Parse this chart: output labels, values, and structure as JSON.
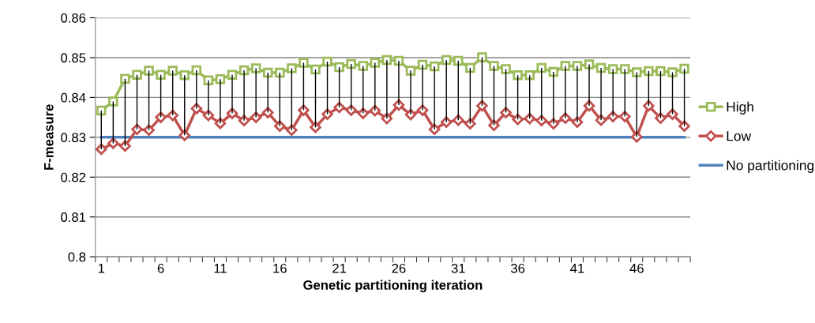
{
  "chart_data": {
    "type": "line",
    "xlabel": "Genetic partitioning iteration",
    "ylabel": "F-measure",
    "categories": [
      "1",
      null,
      null,
      null,
      null,
      "6",
      null,
      null,
      null,
      null,
      "11",
      null,
      null,
      null,
      null,
      "16",
      null,
      null,
      null,
      null,
      "21",
      null,
      null,
      null,
      null,
      "26",
      null,
      null,
      null,
      null,
      "31",
      null,
      null,
      null,
      null,
      "36",
      null,
      null,
      null,
      null,
      "41",
      null,
      null,
      null,
      null,
      "46",
      null,
      null,
      null,
      null
    ],
    "ylim": [
      0.8,
      0.86
    ],
    "yticks": [
      {
        "value": 0.8,
        "label": "0.8"
      },
      0.81,
      0.82,
      0.83,
      0.84,
      0.85,
      0.86
    ],
    "grid": "y",
    "legend": "right",
    "series": [
      {
        "name": "High",
        "color": "#9bbb59",
        "marker": "square",
        "values": [
          0.8367,
          0.839,
          0.8447,
          0.8457,
          0.8467,
          0.8457,
          0.8467,
          0.8456,
          0.8468,
          0.8443,
          0.8446,
          0.8457,
          0.8468,
          0.8473,
          0.8462,
          0.8462,
          0.8473,
          0.8487,
          0.847,
          0.849,
          0.8476,
          0.8484,
          0.8479,
          0.8487,
          0.8494,
          0.8492,
          0.8467,
          0.8482,
          0.8478,
          0.8494,
          0.8492,
          0.8474,
          0.8501,
          0.8479,
          0.8471,
          0.8456,
          0.8456,
          0.8474,
          0.8464,
          0.8479,
          0.8479,
          0.8483,
          0.8474,
          0.8471,
          0.8471,
          0.8463,
          0.8466,
          0.8466,
          0.8463,
          0.8472
        ]
      },
      {
        "name": "Low",
        "color": "#c0504d",
        "marker": "diamond",
        "errors": [
          [
            0.827,
            0.8367
          ],
          [
            0.8285,
            0.839
          ],
          [
            0.8278,
            0.8447
          ],
          [
            0.832,
            0.8457
          ],
          [
            0.8318,
            0.8467
          ],
          [
            0.835,
            0.8457
          ],
          [
            0.8355,
            0.8467
          ],
          [
            0.8305,
            0.8456
          ],
          [
            0.8372,
            0.8468
          ],
          [
            0.8355,
            0.8443
          ],
          [
            0.8335,
            0.8446
          ],
          [
            0.836,
            0.8457
          ],
          [
            0.8342,
            0.8468
          ],
          [
            0.835,
            0.8473
          ],
          [
            0.8362,
            0.8462
          ],
          [
            0.8328,
            0.8462
          ],
          [
            0.8318,
            0.8473
          ],
          [
            0.8368,
            0.8487
          ],
          [
            0.8325,
            0.847
          ],
          [
            0.8358,
            0.849
          ],
          [
            0.8375,
            0.8476
          ],
          [
            0.8368,
            0.8484
          ],
          [
            0.836,
            0.8479
          ],
          [
            0.8367,
            0.8487
          ],
          [
            0.8347,
            0.8494
          ],
          [
            0.8381,
            0.8492
          ],
          [
            0.8357,
            0.8467
          ],
          [
            0.8368,
            0.8482
          ],
          [
            0.832,
            0.8478
          ],
          [
            0.8338,
            0.8494
          ],
          [
            0.8343,
            0.8492
          ],
          [
            0.8334,
            0.8474
          ],
          [
            0.8379,
            0.8501
          ],
          [
            0.833,
            0.8479
          ],
          [
            0.8362,
            0.8471
          ],
          [
            0.8345,
            0.8456
          ],
          [
            0.8347,
            0.8456
          ],
          [
            0.8342,
            0.8474
          ],
          [
            0.8334,
            0.8464
          ],
          [
            0.8348,
            0.8479
          ],
          [
            0.8338,
            0.8479
          ],
          [
            0.8379,
            0.8483
          ],
          [
            0.8343,
            0.8474
          ],
          [
            0.8352,
            0.8471
          ],
          [
            0.8352,
            0.8471
          ],
          [
            0.8301,
            0.8463
          ],
          [
            0.8379,
            0.8466
          ],
          [
            0.8348,
            0.8466
          ],
          [
            0.8358,
            0.8463
          ],
          [
            0.8328,
            0.8472
          ]
        ],
        "values": [
          0.827,
          0.8285,
          0.8278,
          0.832,
          0.8318,
          0.835,
          0.8355,
          0.8305,
          0.8372,
          0.8355,
          0.8335,
          0.836,
          0.8342,
          0.835,
          0.8362,
          0.8328,
          0.8318,
          0.8368,
          0.8325,
          0.8358,
          0.8375,
          0.8368,
          0.836,
          0.8367,
          0.8347,
          0.8381,
          0.8357,
          0.8368,
          0.832,
          0.8338,
          0.8343,
          0.8334,
          0.8379,
          0.833,
          0.8362,
          0.8345,
          0.8347,
          0.8342,
          0.8334,
          0.8348,
          0.8338,
          0.8379,
          0.8343,
          0.8352,
          0.8352,
          0.8301,
          0.8379,
          0.8348,
          0.8358,
          0.8328
        ]
      },
      {
        "name": "No partitioning",
        "color": "#4f81bd",
        "marker": "none",
        "values": [
          0.83,
          0.83,
          0.83,
          0.83,
          0.83,
          0.83,
          0.83,
          0.83,
          0.83,
          0.83,
          0.83,
          0.83,
          0.83,
          0.83,
          0.83,
          0.83,
          0.83,
          0.83,
          0.83,
          0.83,
          0.83,
          0.83,
          0.83,
          0.83,
          0.83,
          0.83,
          0.83,
          0.83,
          0.83,
          0.83,
          0.83,
          0.83,
          0.83,
          0.83,
          0.83,
          0.83,
          0.83,
          0.83,
          0.83,
          0.83,
          0.83,
          0.83,
          0.83,
          0.83,
          0.83,
          0.83,
          0.83,
          0.83,
          0.83,
          0.83
        ]
      }
    ]
  }
}
